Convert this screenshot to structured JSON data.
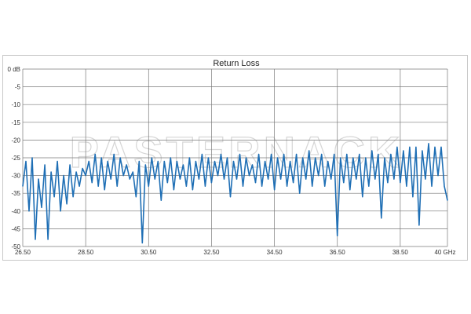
{
  "chart_data": {
    "type": "line",
    "title": "Return Loss",
    "watermark": "PASTERNACK",
    "xlim": [
      26.5,
      40
    ],
    "ylim": [
      -50,
      0
    ],
    "x_ticks": [
      26.5,
      28.5,
      30.5,
      32.5,
      34.5,
      36.5,
      38.5,
      40
    ],
    "x_tick_labels": [
      "26.50",
      "28.50",
      "30.50",
      "32.50",
      "34.50",
      "36.50",
      "38.50",
      "40 GHz"
    ],
    "y_ticks": [
      0,
      -5,
      -10,
      -15,
      -20,
      -25,
      -30,
      -35,
      -40,
      -45,
      -50
    ],
    "y_tick_labels": [
      "0 dB",
      "-5",
      "-10",
      "-15",
      "-20",
      "-25",
      "-30",
      "-35",
      "-40",
      "-45",
      "-50"
    ],
    "grid": true,
    "line_color": "#1f6fb5",
    "series": [
      {
        "x": [
          26.5,
          26.6,
          26.7,
          26.8,
          26.9,
          27.0,
          27.1,
          27.2,
          27.3,
          27.4,
          27.5,
          27.6,
          27.7,
          27.8,
          27.9,
          28.0,
          28.1,
          28.2,
          28.3,
          28.4,
          28.5,
          28.6,
          28.7,
          28.8,
          28.9,
          29.0,
          29.1,
          29.2,
          29.3,
          29.4,
          29.5,
          29.6,
          29.7,
          29.8,
          29.9,
          30.0,
          30.1,
          30.2,
          30.3,
          30.4,
          30.5,
          30.6,
          30.7,
          30.8,
          30.9,
          31.0,
          31.1,
          31.2,
          31.3,
          31.4,
          31.5,
          31.6,
          31.7,
          31.8,
          31.9,
          32.0,
          32.1,
          32.2,
          32.3,
          32.4,
          32.5,
          32.6,
          32.7,
          32.8,
          32.9,
          33.0,
          33.1,
          33.2,
          33.3,
          33.4,
          33.5,
          33.6,
          33.7,
          33.8,
          33.9,
          34.0,
          34.1,
          34.2,
          34.3,
          34.4,
          34.5,
          34.6,
          34.7,
          34.8,
          34.9,
          35.0,
          35.1,
          35.2,
          35.3,
          35.4,
          35.5,
          35.6,
          35.7,
          35.8,
          35.9,
          36.0,
          36.1,
          36.2,
          36.3,
          36.4,
          36.5,
          36.6,
          36.7,
          36.8,
          36.9,
          37.0,
          37.1,
          37.2,
          37.3,
          37.4,
          37.5,
          37.6,
          37.7,
          37.8,
          37.9,
          38.0,
          38.1,
          38.2,
          38.3,
          38.4,
          38.5,
          38.6,
          38.7,
          38.8,
          38.9,
          39.0,
          39.1,
          39.2,
          39.3,
          39.4,
          39.5,
          39.6,
          39.7,
          39.8,
          39.9,
          40.0
        ],
        "values": [
          -33,
          -26,
          -40,
          -25,
          -48,
          -31,
          -39,
          -27,
          -48,
          -29,
          -36,
          -26,
          -40,
          -30,
          -38,
          -27,
          -36,
          -29,
          -33,
          -28,
          -30,
          -26,
          -32,
          -24,
          -33,
          -25,
          -34,
          -26,
          -31,
          -24,
          -33,
          -25,
          -30,
          -27,
          -31,
          -29,
          -36,
          -26,
          -49,
          -27,
          -33,
          -25,
          -31,
          -26,
          -37,
          -26,
          -32,
          -25,
          -34,
          -26,
          -31,
          -27,
          -33,
          -25,
          -34,
          -26,
          -31,
          -24,
          -33,
          -25,
          -32,
          -26,
          -30,
          -24,
          -31,
          -25,
          -36,
          -26,
          -31,
          -24,
          -33,
          -25,
          -30,
          -27,
          -32,
          -24,
          -33,
          -26,
          -31,
          -24,
          -34,
          -25,
          -31,
          -24,
          -33,
          -26,
          -32,
          -24,
          -35,
          -25,
          -31,
          -23,
          -33,
          -25,
          -30,
          -24,
          -33,
          -26,
          -31,
          -24,
          -47,
          -25,
          -32,
          -24,
          -34,
          -25,
          -31,
          -24,
          -36,
          -25,
          -33,
          -23,
          -31,
          -24,
          -42,
          -25,
          -32,
          -24,
          -31,
          -22,
          -32,
          -23,
          -33,
          -22,
          -36,
          -22,
          -44,
          -23,
          -31,
          -21,
          -33,
          -22,
          -30,
          -22,
          -33,
          -37
        ]
      }
    ]
  }
}
